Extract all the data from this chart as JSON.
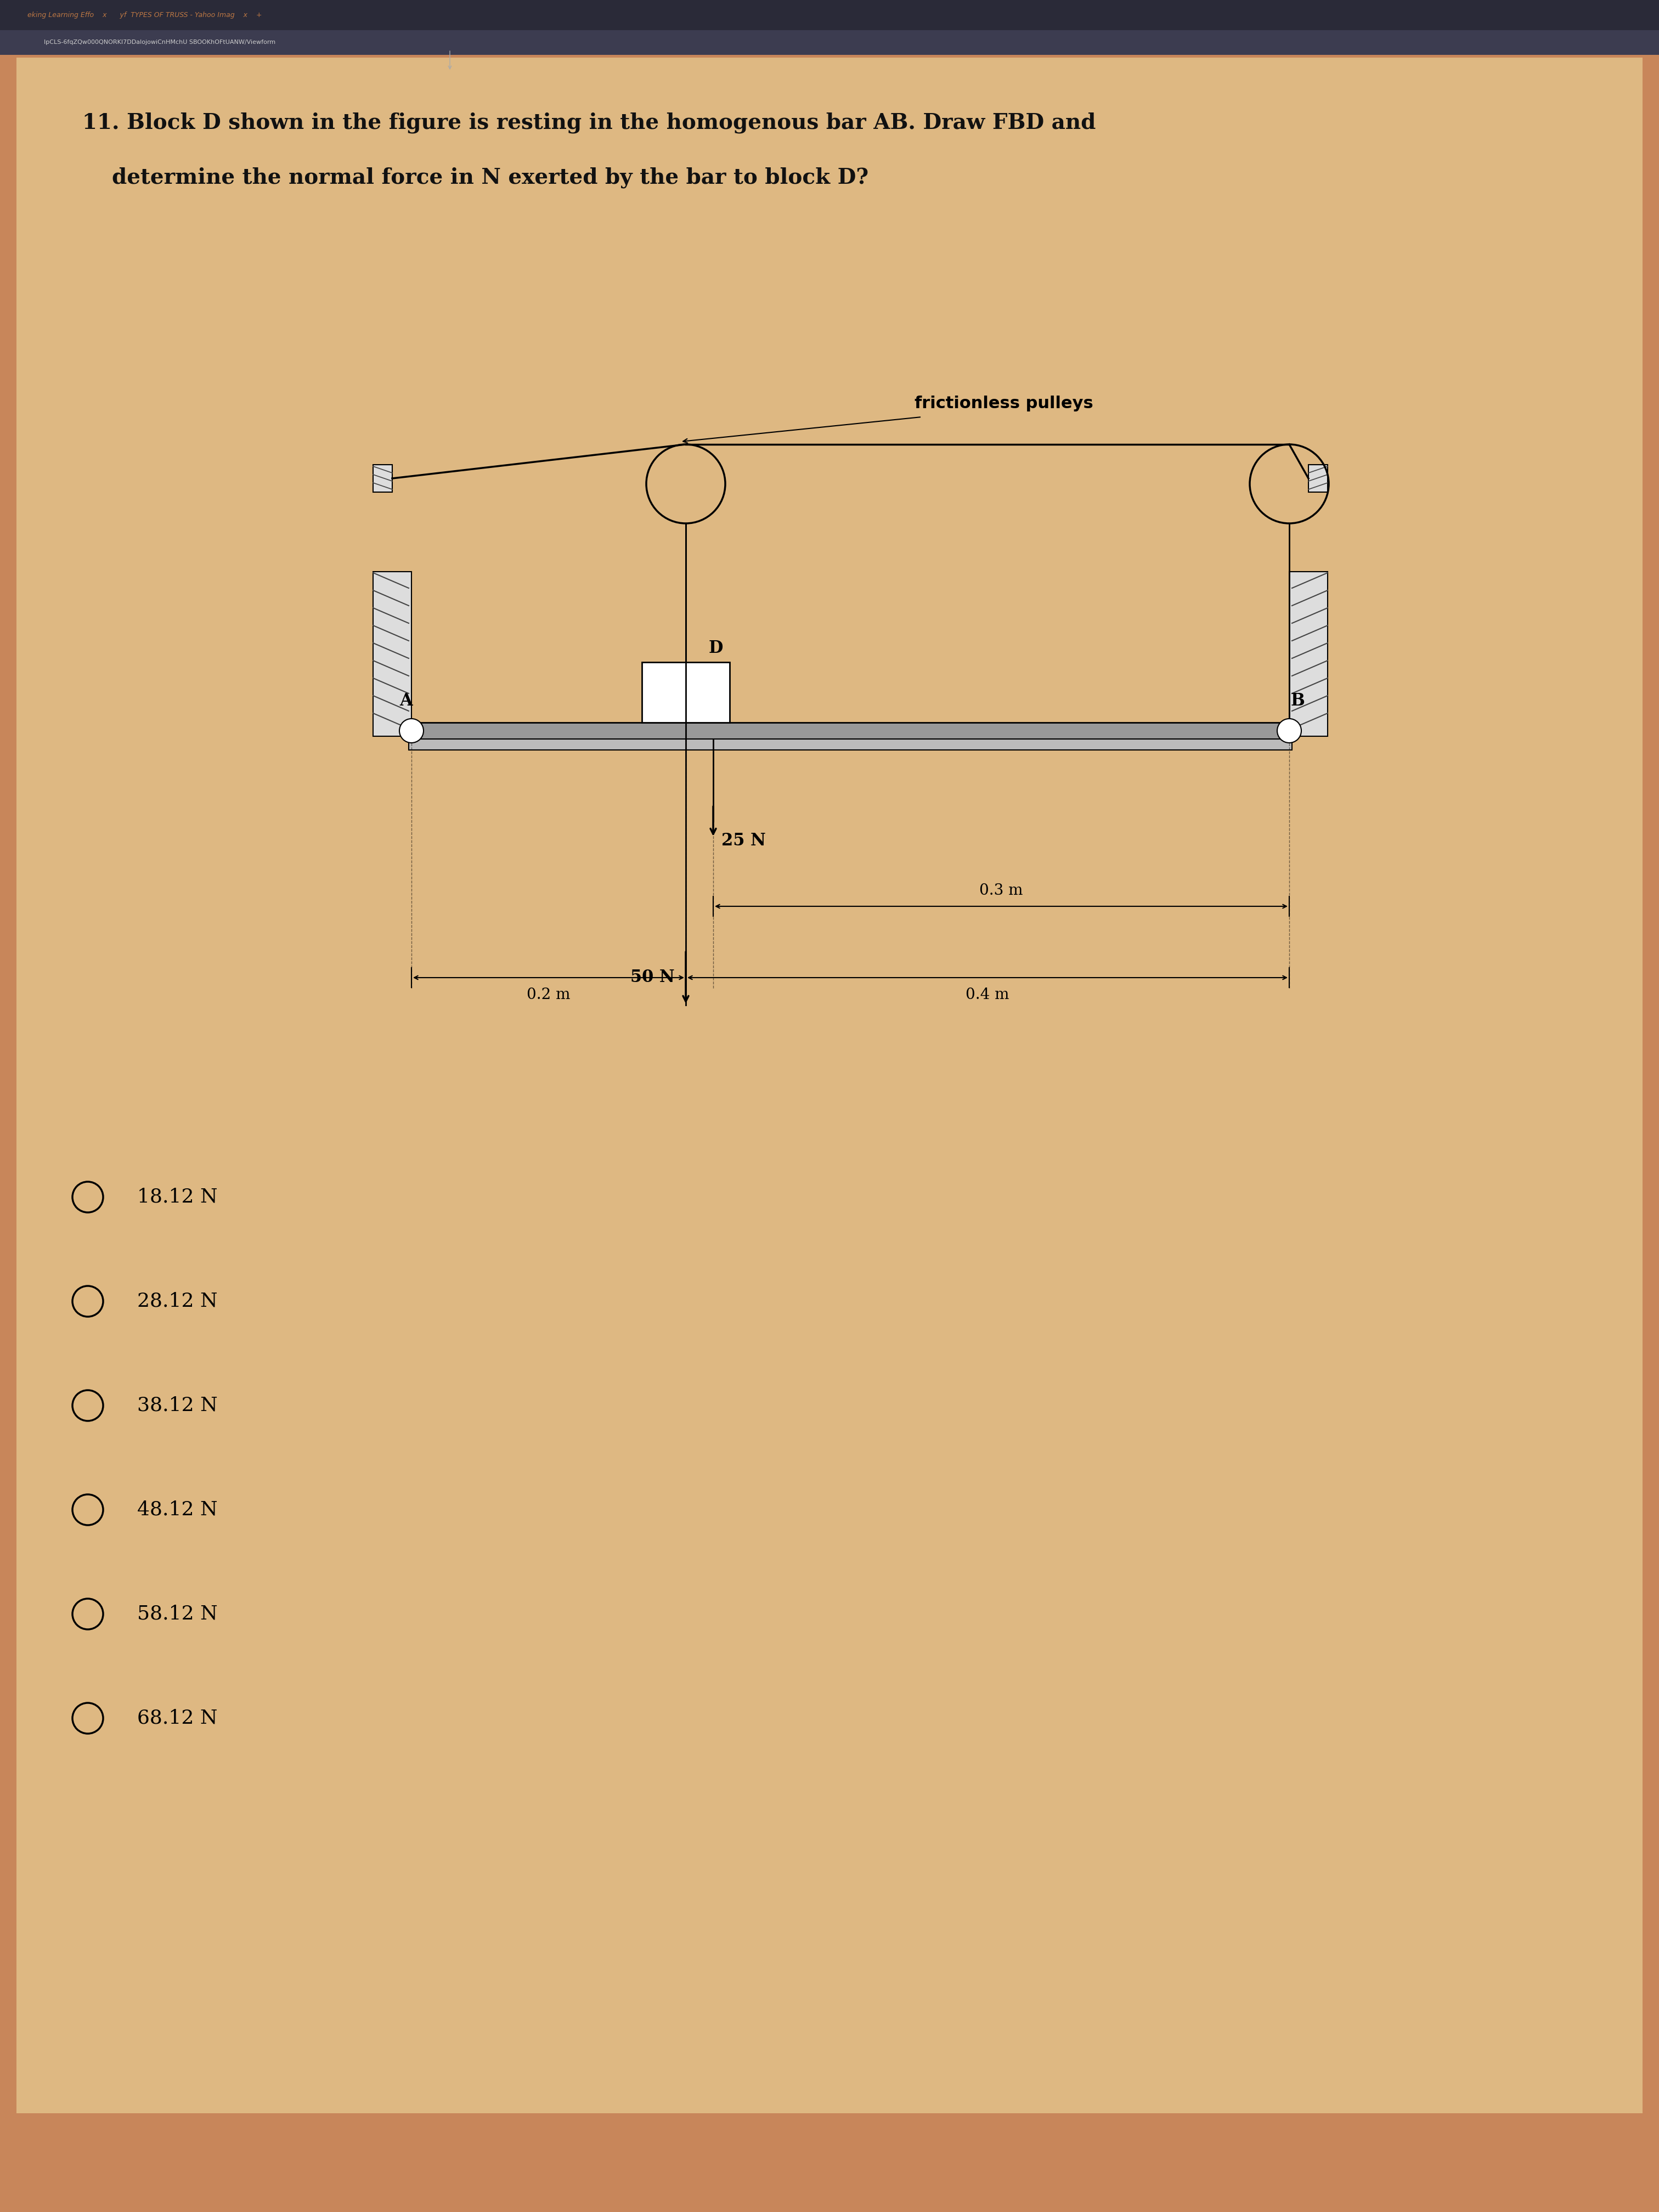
{
  "background_top": "#2d2d3a",
  "background_main": "#c8865a",
  "background_paper": "#deb882",
  "tab_bar_color": "#2a2a38",
  "tab_text": "eking Learning Effo    x      yf  TYPES OF TRUSS - Yahoo Imag    x    +",
  "url_text": "IpCLS-6fqZQw000QNORKI7DDalojowiCnHMchU SBOOKhOFtUANW/Viewform",
  "question_line1": "11. Block D shown in the figure is resting in the homogenous bar AB. Draw FBD and",
  "question_line2": "    determine the normal force in N exerted by the bar to block D?",
  "pulley_label": "frictionless pulleys",
  "label_A": "A",
  "label_B": "B",
  "label_D": "D",
  "force_50N": "50 N",
  "force_25N": "25 N",
  "dim_02m": "0.2 m",
  "dim_04m": "0.4 m",
  "dim_03m": "0.3 m",
  "choices": [
    "18.12 N",
    "28.12 N",
    "38.12 N",
    "48.12 N",
    "58.12 N",
    "68.12 N"
  ],
  "question_fontsize": 28,
  "choice_fontsize": 26,
  "figwidth": 30.24,
  "figheight": 40.32
}
